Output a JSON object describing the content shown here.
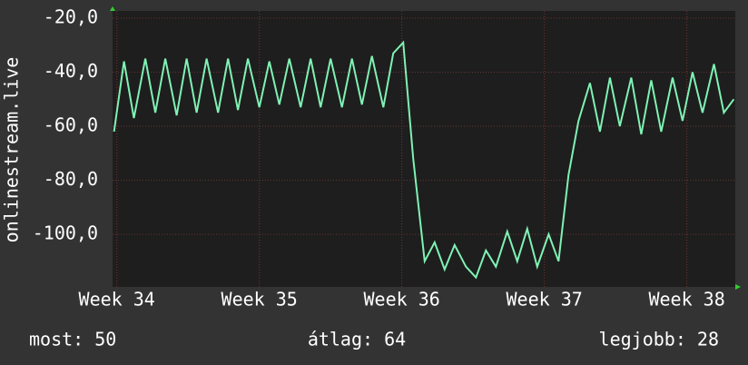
{
  "chart_data": {
    "type": "line",
    "ylabel": "onlinestream.live",
    "color": "#7ff2b4",
    "grid": true,
    "ylim": [
      -119.5,
      -17.3
    ],
    "yticks": [
      {
        "value": -20,
        "label": "-20,0"
      },
      {
        "value": -40,
        "label": "-40,0"
      },
      {
        "value": -60,
        "label": "-60,0"
      },
      {
        "value": -80,
        "label": "-80,0"
      },
      {
        "value": -100,
        "label": "-100,0"
      }
    ],
    "xlim": [
      33.97,
      38.34
    ],
    "xticks": [
      {
        "value": 34,
        "label": "Week 34"
      },
      {
        "value": 35,
        "label": "Week 35"
      },
      {
        "value": 36,
        "label": "Week 36"
      },
      {
        "value": 37,
        "label": "Week 37"
      },
      {
        "value": 38,
        "label": "Week 38"
      }
    ],
    "x": [
      33.98,
      34.05,
      34.12,
      34.2,
      34.27,
      34.34,
      34.42,
      34.49,
      34.56,
      34.63,
      34.71,
      34.78,
      34.85,
      34.92,
      35.0,
      35.07,
      35.14,
      35.21,
      35.29,
      35.36,
      35.43,
      35.5,
      35.58,
      35.65,
      35.72,
      35.79,
      35.87,
      35.94,
      36.01,
      36.08,
      36.16,
      36.23,
      36.3,
      36.37,
      36.45,
      36.52,
      36.59,
      36.66,
      36.74,
      36.81,
      36.88,
      36.95,
      37.03,
      37.1,
      37.17,
      37.24,
      37.32,
      37.39,
      37.46,
      37.53,
      37.61,
      37.68,
      37.75,
      37.82,
      37.9,
      37.97,
      38.04,
      38.11,
      38.19,
      38.26,
      38.33
    ],
    "values": [
      -62,
      -36,
      -57,
      -35,
      -55,
      -35,
      -56,
      -35,
      -55,
      -35,
      -55,
      -35,
      -54,
      -35,
      -53,
      -36,
      -52,
      -35,
      -53,
      -35,
      -53,
      -35,
      -53,
      -35,
      -52,
      -34,
      -53,
      -33,
      -29,
      -72,
      -110,
      -103,
      -113,
      -104,
      -112,
      -116,
      -106,
      -112,
      -99,
      -110,
      -98,
      -112,
      -100,
      -110,
      -78,
      -58,
      -44,
      -62,
      -42,
      -60,
      -42,
      -63,
      -43,
      -62,
      -42,
      -58,
      -40,
      -55,
      -37,
      -55,
      -50
    ],
    "stats": [
      "most: 50",
      "átlag: 64",
      "legjobb: 28"
    ]
  }
}
